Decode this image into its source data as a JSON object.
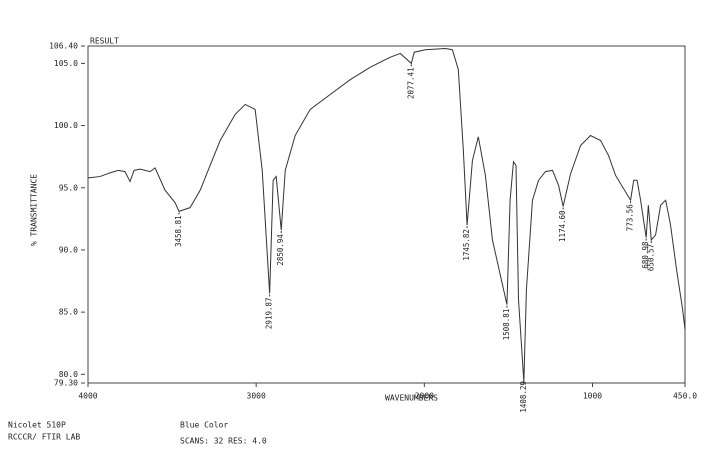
{
  "chart_data": {
    "type": "line",
    "title": "RESULT",
    "x_label": "WAVENUMBERS",
    "y_label": "% TRANSMITTANCE",
    "instrument": "Nicolet 510P",
    "lab": "RCCCR/ FTIR LAB",
    "sample": "Blue Color",
    "settings": "SCANS: 32  RES: 4.0",
    "xlim": [
      4000,
      450
    ],
    "ylim": [
      79.3,
      106.4
    ],
    "xticks": [
      4000,
      3000,
      2000,
      1000,
      {
        "value": 450,
        "label": "450.0"
      }
    ],
    "yticks": [
      {
        "value": 79.3,
        "label": "79.30"
      },
      {
        "value": 80,
        "label": "80.0"
      },
      {
        "value": 85,
        "label": "85.0"
      },
      {
        "value": 90,
        "label": "90.0"
      },
      {
        "value": 95,
        "label": "95.0"
      },
      {
        "value": 100,
        "label": "100.0"
      },
      {
        "value": 105,
        "label": "105.0"
      },
      {
        "value": 106.4,
        "label": "106.40"
      }
    ],
    "color": "#333333",
    "x": [
      4000,
      3929,
      3869,
      3821,
      3780,
      3750,
      3726,
      3690,
      3631,
      3601,
      3542,
      3482,
      3458.81,
      3393,
      3333,
      3274,
      3214,
      3125,
      3065,
      3006,
      2964,
      2919.87,
      2899,
      2881,
      2850.94,
      2827,
      2768,
      2679,
      2560,
      2440,
      2321,
      2202,
      2143,
      2077.41,
      2060,
      1994,
      1875,
      1833,
      1798,
      1768,
      1745.82,
      1714,
      1679,
      1637,
      1595,
      1508.81,
      1490,
      1470,
      1455,
      1440,
      1408.29,
      1393,
      1357,
      1321,
      1280,
      1238,
      1202,
      1174.6,
      1131,
      1071,
      1012,
      952,
      905,
      863,
      773.56,
      755,
      735,
      714,
      680.98,
      668,
      650.57,
      625,
      595,
      565,
      536,
      500,
      464,
      450
    ],
    "values": [
      95.8,
      95.9,
      96.2,
      96.4,
      96.3,
      95.5,
      96.4,
      96.5,
      96.3,
      96.6,
      94.8,
      93.8,
      93.1,
      93.4,
      94.8,
      96.8,
      98.8,
      100.9,
      101.7,
      101.3,
      96.4,
      86.5,
      95.6,
      95.9,
      91.6,
      96.4,
      99.2,
      101.3,
      102.5,
      103.7,
      104.7,
      105.5,
      105.8,
      105.0,
      105.9,
      106.1,
      106.2,
      106.1,
      104.5,
      98.0,
      92.0,
      97.2,
      99.1,
      96.0,
      90.8,
      85.6,
      94.0,
      97.1,
      96.8,
      86.0,
      79.4,
      86.8,
      94.0,
      95.6,
      96.3,
      96.4,
      95.2,
      93.5,
      96.1,
      98.4,
      99.2,
      98.8,
      97.6,
      96.0,
      94.0,
      95.6,
      95.6,
      94.0,
      91.0,
      93.6,
      90.8,
      91.2,
      93.6,
      94.0,
      92.0,
      88.4,
      85.2,
      83.6
    ],
    "annotations": [
      {
        "label": "3458.81",
        "x": 3458.81,
        "y": 93.1
      },
      {
        "label": "2919.87",
        "x": 2919.87,
        "y": 86.5
      },
      {
        "label": "2850.94",
        "x": 2850.94,
        "y": 91.6
      },
      {
        "label": "2077.41",
        "x": 2077.41,
        "y": 105.0
      },
      {
        "label": "1745.82",
        "x": 1745.82,
        "y": 92.0
      },
      {
        "label": "1508.81",
        "x": 1508.81,
        "y": 85.6
      },
      {
        "label": "1408.29",
        "x": 1408.29,
        "y": 79.4
      },
      {
        "label": "1174.60",
        "x": 1174.6,
        "y": 93.5
      },
      {
        "label": "773.56",
        "x": 773.56,
        "y": 94.0
      },
      {
        "label": "680.98",
        "x": 680.98,
        "y": 91.0
      },
      {
        "label": "650.57",
        "x": 650.57,
        "y": 90.8
      }
    ]
  }
}
